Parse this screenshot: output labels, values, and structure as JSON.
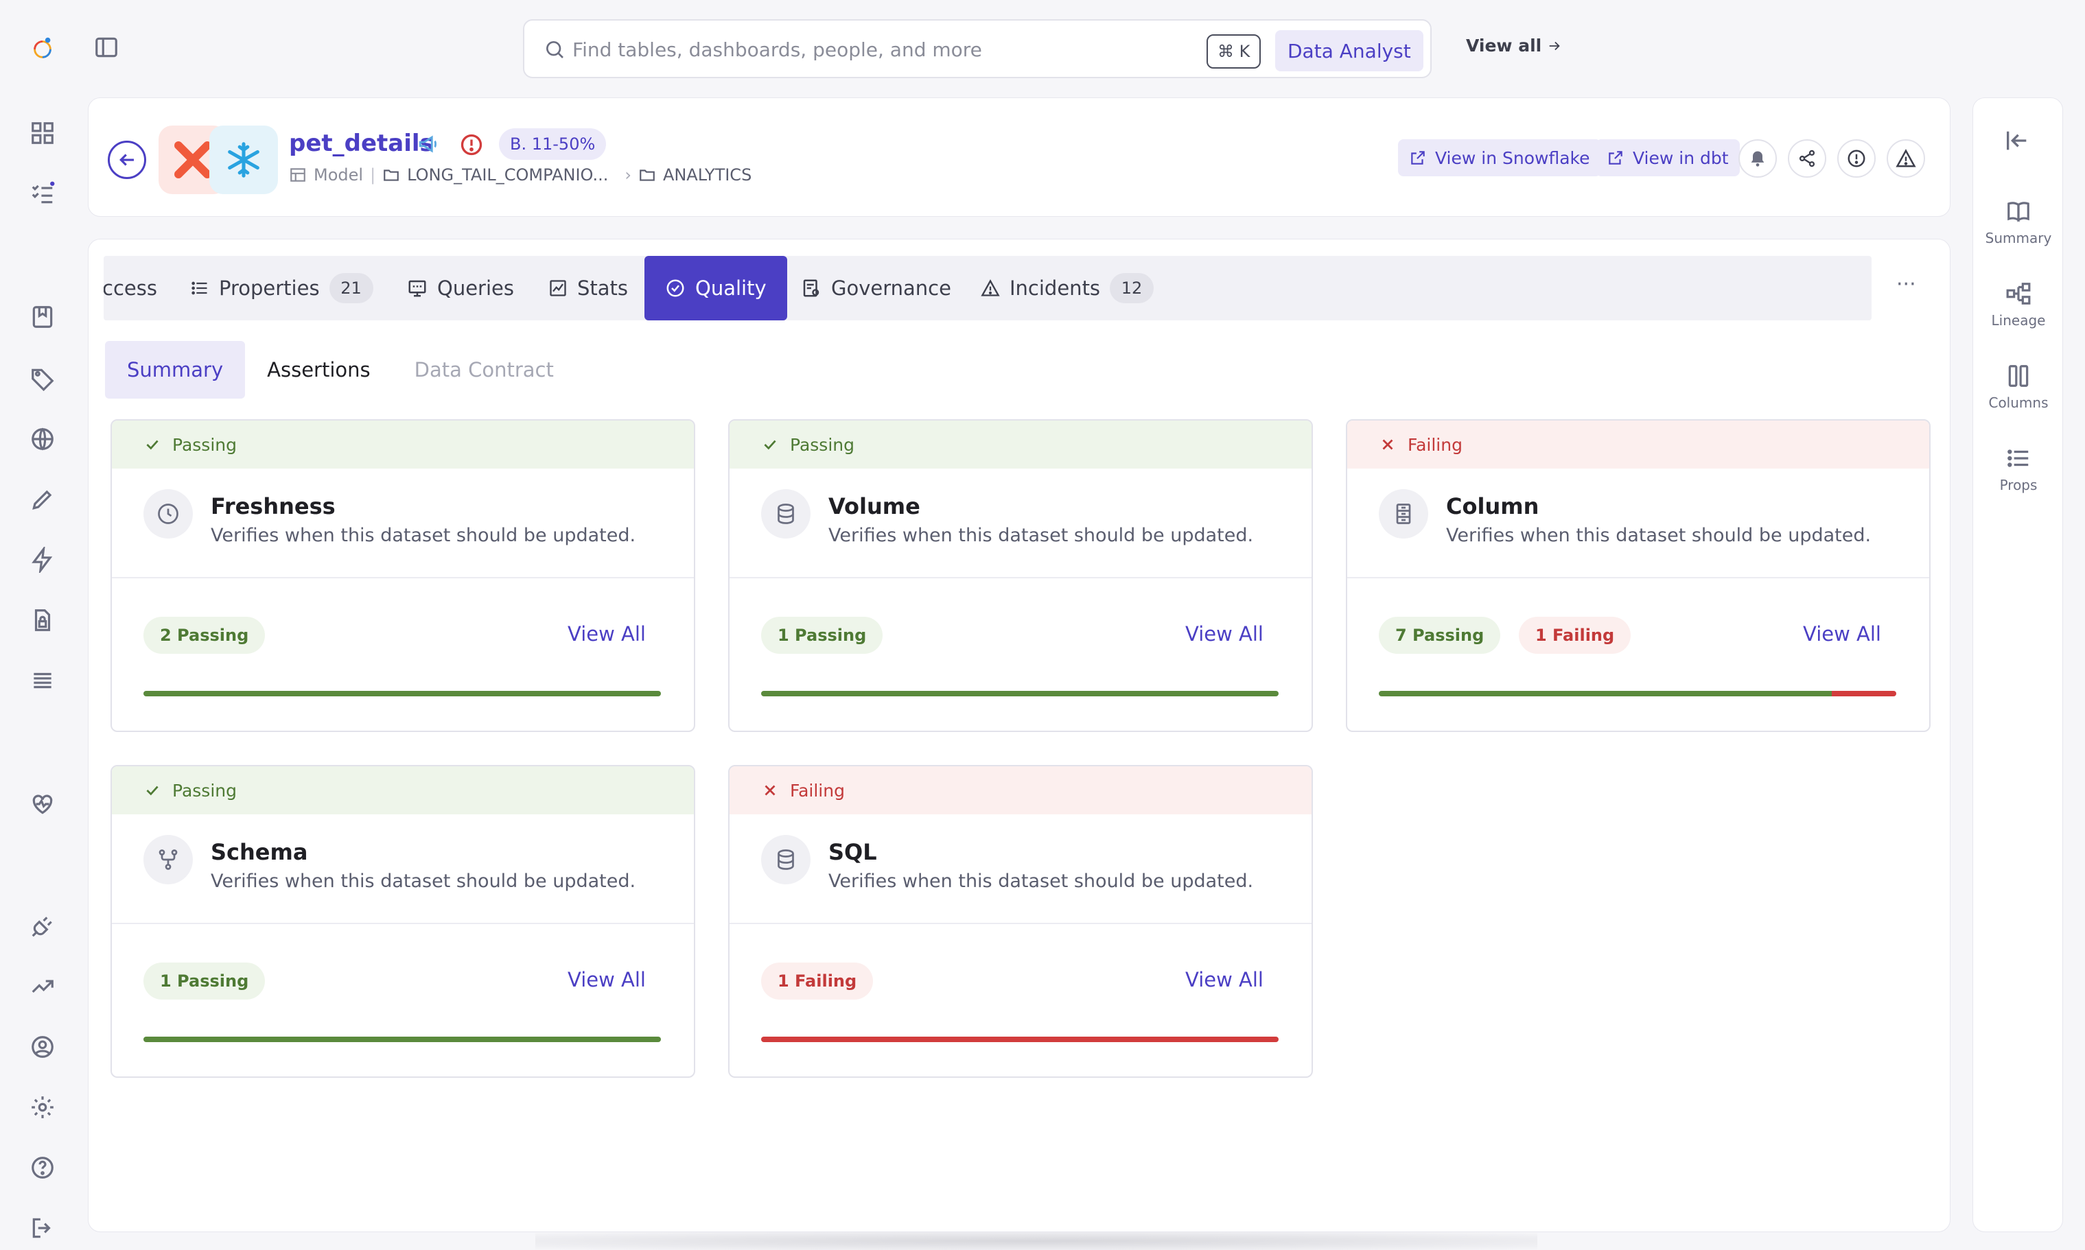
{
  "search": {
    "placeholder": "Find tables, dashboards, people, and more",
    "shortcut": "⌘ K",
    "role": "Data Analyst",
    "view_all": "View all"
  },
  "entity": {
    "name": "pet_details",
    "health_badge": "B. 11-50%",
    "type": "Model",
    "path": [
      "LONG_TAIL_COMPANIO...",
      "ANALYTICS"
    ],
    "actions": {
      "view_snowflake": "View in Snowflake",
      "view_dbt": "View in dbt"
    }
  },
  "tabs": [
    {
      "label": "ccess",
      "count": null
    },
    {
      "label": "Properties",
      "count": "21"
    },
    {
      "label": "Queries",
      "count": null
    },
    {
      "label": "Stats",
      "count": null
    },
    {
      "label": "Quality",
      "count": null,
      "active": true
    },
    {
      "label": "Governance",
      "count": null
    },
    {
      "label": "Incidents",
      "count": "12"
    }
  ],
  "more_label": "···",
  "subtabs": [
    {
      "label": "Summary",
      "active": true
    },
    {
      "label": "Assertions"
    },
    {
      "label": "Data Contract",
      "disabled": true
    }
  ],
  "assertions": [
    {
      "status": "Passing",
      "title": "Freshness",
      "desc": "Verifies when this dataset should be updated.",
      "passing": "2 Passing",
      "failing": null,
      "view_all": "View All",
      "pass_count": 2,
      "fail_count": 0,
      "icon": "clock-icon"
    },
    {
      "status": "Passing",
      "title": "Volume",
      "desc": "Verifies when this dataset should be updated.",
      "passing": "1 Passing",
      "failing": null,
      "view_all": "View All",
      "pass_count": 1,
      "fail_count": 0,
      "icon": "database-icon"
    },
    {
      "status": "Failing",
      "title": "Column",
      "desc": "Verifies when this dataset should be updated.",
      "passing": "7 Passing",
      "failing": "1 Failing",
      "view_all": "View All",
      "pass_count": 7,
      "fail_count": 1,
      "icon": "column-icon"
    },
    {
      "status": "Passing",
      "title": "Schema",
      "desc": "Verifies when this dataset should be updated.",
      "passing": "1 Passing",
      "failing": null,
      "view_all": "View All",
      "pass_count": 1,
      "fail_count": 0,
      "icon": "schema-icon"
    },
    {
      "status": "Failing",
      "title": "SQL",
      "desc": "Verifies when this dataset should be updated.",
      "passing": null,
      "failing": "1 Failing",
      "view_all": "View All",
      "pass_count": 0,
      "fail_count": 1,
      "icon": "database-icon"
    }
  ],
  "right_rail": [
    {
      "label": "Summary",
      "icon": "book-icon"
    },
    {
      "label": "Lineage",
      "icon": "lineage-icon"
    },
    {
      "label": "Columns",
      "icon": "columns-icon"
    },
    {
      "label": "Props",
      "icon": "list-icon"
    }
  ],
  "colors": {
    "accent": "#4b3fc4",
    "pass": "#5a8a3c",
    "fail": "#d23c3c"
  }
}
